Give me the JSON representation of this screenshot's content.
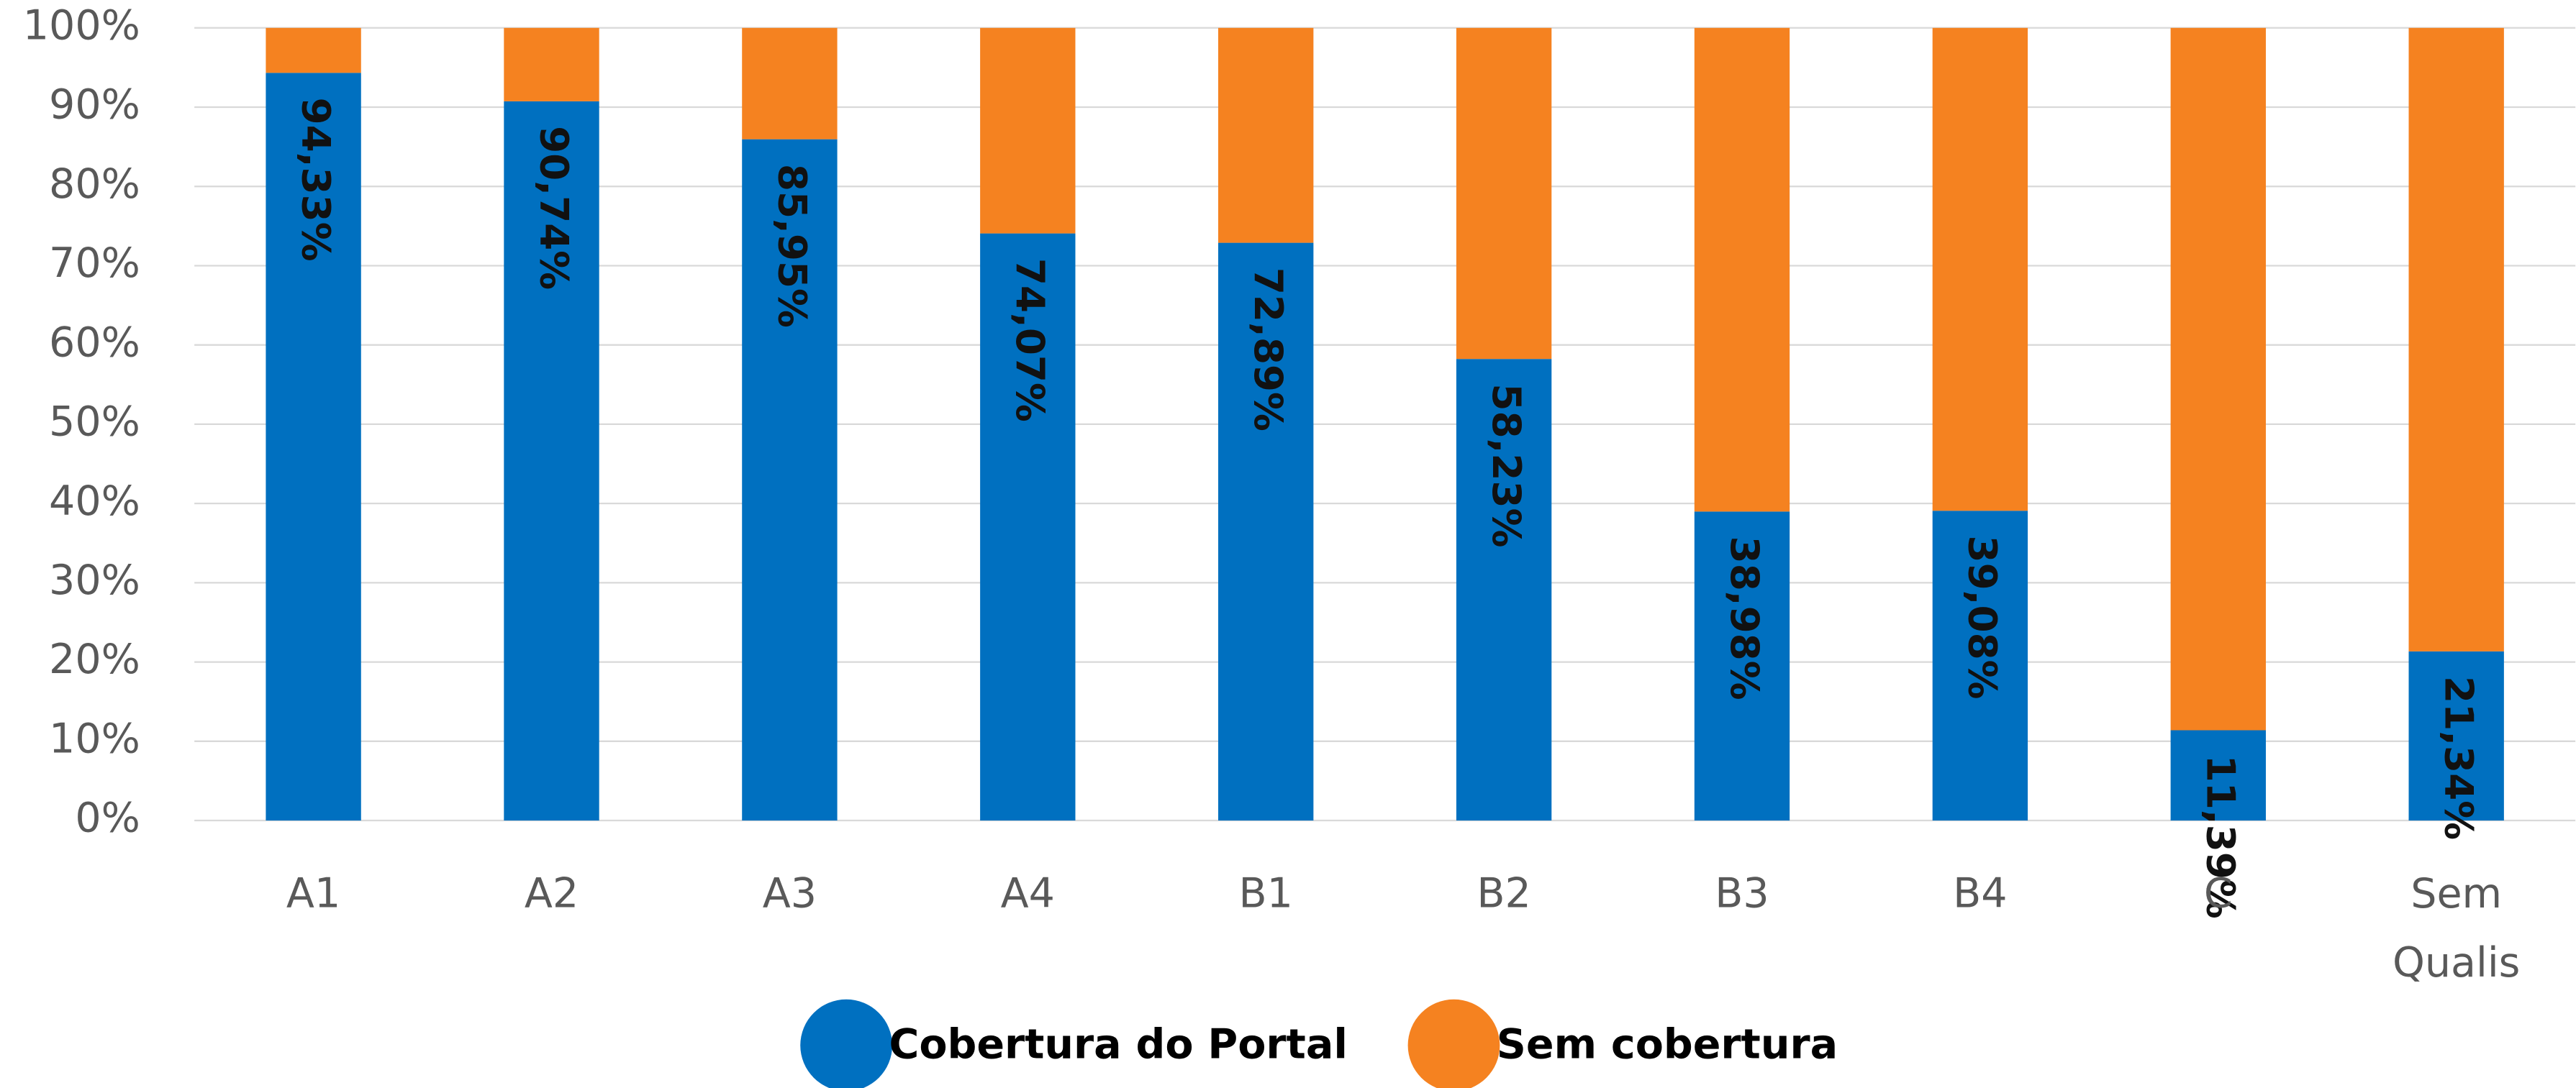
{
  "chart_data": {
    "type": "stacked_bar",
    "categories": [
      "A1",
      "A2",
      "A3",
      "A4",
      "B1",
      "B2",
      "B3",
      "B4",
      "C",
      "Sem Qualis"
    ],
    "series": [
      {
        "name": "Cobertura do Portal",
        "color": "#0070c0",
        "values": [
          94.33,
          90.74,
          85.95,
          74.07,
          72.89,
          58.23,
          38.98,
          39.08,
          11.39,
          21.34
        ],
        "value_labels": [
          "94,33%",
          "90,74%",
          "85,95%",
          "74,07%",
          "72,89%",
          "58,23%",
          "38,98%",
          "39,08%",
          "11,39%",
          "21,34%"
        ]
      },
      {
        "name": "Sem cobertura",
        "color": "#f58220",
        "values": [
          5.67,
          9.26,
          14.05,
          25.93,
          27.11,
          41.77,
          61.02,
          60.92,
          88.61,
          78.66
        ]
      }
    ],
    "ylim": [
      0,
      100
    ],
    "yticks": [
      {
        "value": 0,
        "label": "0%"
      },
      {
        "value": 10,
        "label": "10%"
      },
      {
        "value": 20,
        "label": "20%"
      },
      {
        "value": 30,
        "label": "30%"
      },
      {
        "value": 40,
        "label": "40%"
      },
      {
        "value": 50,
        "label": "50%"
      },
      {
        "value": 60,
        "label": "60%"
      },
      {
        "value": 70,
        "label": "70%"
      },
      {
        "value": 80,
        "label": "80%"
      },
      {
        "value": 90,
        "label": "90%"
      },
      {
        "value": 100,
        "label": "100%"
      }
    ],
    "grid": true,
    "legend": "bottom"
  }
}
